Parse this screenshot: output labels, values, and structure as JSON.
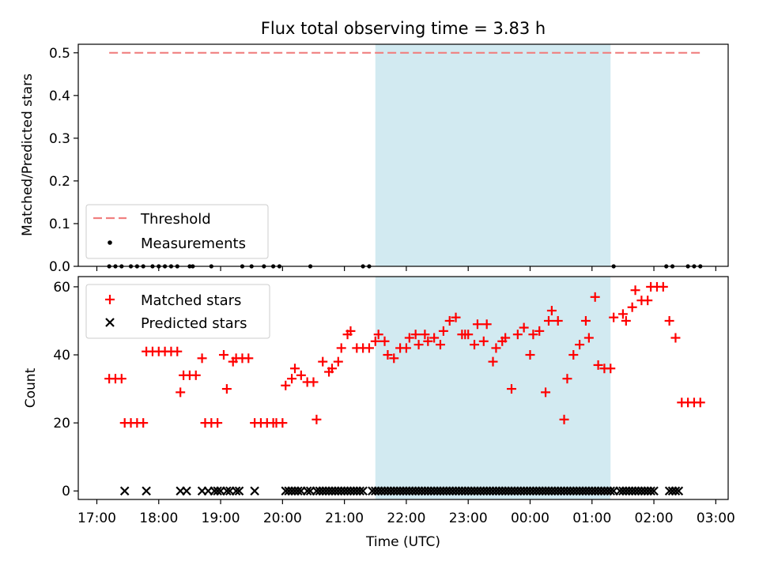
{
  "title": "Flux total observing time = 3.83 h",
  "colors": {
    "threshold": "#f08080",
    "shaded": "#add8e6",
    "matched": "#ff0000",
    "predicted": "#000000",
    "measurement": "#000000"
  },
  "chart_data": [
    {
      "type": "scatter",
      "ylabel": "Matched/Predicted stars",
      "ylim": [
        0,
        0.52
      ],
      "yticks": [
        "0.0",
        "0.1",
        "0.2",
        "0.3",
        "0.4",
        "0.5"
      ],
      "shaded_region": {
        "start_h": 21.5,
        "end_h": 25.3
      },
      "threshold": {
        "value": 0.5,
        "start_h": 17.2,
        "end_h": 26.75
      },
      "legend": {
        "position": "lower-left",
        "threshold_label": "Threshold",
        "measurements_label": "Measurements"
      },
      "measurements_x": [
        17.2,
        17.3,
        17.4,
        17.55,
        17.65,
        17.75,
        17.9,
        18.0,
        18.1,
        18.2,
        18.3,
        18.5,
        18.55,
        18.85,
        19.35,
        19.5,
        19.7,
        19.85,
        19.95,
        20.45,
        21.3,
        21.4,
        25.35,
        26.2,
        26.3,
        26.55,
        26.65,
        26.75
      ],
      "measurements_y": 0
    },
    {
      "type": "scatter",
      "xlabel": "Time (UTC)",
      "ylabel": "Count",
      "ylim": [
        -2.5,
        63
      ],
      "yticks": [
        "0",
        "20",
        "40",
        "60"
      ],
      "xlim": [
        16.7,
        27.2
      ],
      "xticks": [
        "17:00",
        "18:00",
        "19:00",
        "20:00",
        "21:00",
        "22:00",
        "23:00",
        "00:00",
        "01:00",
        "02:00",
        "03:00"
      ],
      "legend": {
        "position": "upper-left",
        "matched_label": "Matched stars",
        "predicted_label": "Predicted stars"
      },
      "series": [
        {
          "name": "Matched stars",
          "x": [
            17.2,
            17.3,
            17.4,
            17.45,
            17.55,
            17.65,
            17.75,
            17.8,
            17.9,
            18.0,
            18.1,
            18.2,
            18.3,
            18.35,
            18.4,
            18.5,
            18.6,
            18.7,
            18.75,
            18.85,
            18.95,
            19.05,
            19.1,
            19.2,
            19.25,
            19.35,
            19.45,
            19.55,
            19.65,
            19.75,
            19.85,
            19.9,
            20.0,
            20.05,
            20.15,
            20.2,
            20.3,
            20.4,
            20.5,
            20.55,
            20.65,
            20.75,
            20.8,
            20.9,
            20.95,
            21.05,
            21.1,
            21.2,
            21.3,
            21.4,
            21.5,
            21.55,
            21.65,
            21.7,
            21.8,
            21.9,
            22.0,
            22.05,
            22.15,
            22.2,
            22.3,
            22.35,
            22.45,
            22.55,
            22.6,
            22.7,
            22.8,
            22.9,
            22.95,
            23.0,
            23.1,
            23.15,
            23.25,
            23.3,
            23.4,
            23.45,
            23.55,
            23.6,
            23.7,
            23.8,
            23.9,
            24.0,
            24.05,
            24.15,
            24.25,
            24.3,
            24.35,
            24.45,
            24.55,
            24.6,
            24.7,
            24.8,
            24.9,
            24.95,
            25.05,
            25.1,
            25.2,
            25.3,
            25.35,
            25.5,
            25.55,
            25.65,
            25.7,
            25.8,
            25.9,
            25.95,
            26.05,
            26.15,
            26.25,
            26.35,
            26.45,
            26.55,
            26.65,
            26.75
          ],
          "y": [
            33,
            33,
            33,
            20,
            20,
            20,
            20,
            41,
            41,
            41,
            41,
            41,
            41,
            29,
            34,
            34,
            34,
            39,
            20,
            20,
            20,
            40,
            30,
            38,
            39,
            39,
            39,
            20,
            20,
            20,
            20,
            20,
            20,
            31,
            33,
            36,
            34,
            32,
            32,
            21,
            38,
            35,
            36,
            38,
            42,
            46,
            47,
            42,
            42,
            42,
            44,
            46,
            44,
            40,
            39,
            42,
            42,
            45,
            46,
            43,
            46,
            44,
            45,
            43,
            47,
            50,
            51,
            46,
            46,
            46,
            43,
            49,
            44,
            49,
            38,
            42,
            44,
            45,
            30,
            46,
            48,
            40,
            46,
            47,
            29,
            50,
            53,
            50,
            21,
            33,
            40,
            43,
            50,
            45,
            57,
            37,
            36,
            36,
            51,
            52,
            50,
            54,
            59,
            56,
            56,
            60,
            60,
            60,
            50,
            45,
            26,
            26,
            26,
            26
          ]
        },
        {
          "name": "Predicted stars",
          "x": [
            17.45,
            17.8,
            18.35,
            18.45,
            18.7,
            18.8,
            18.9,
            18.95,
            19.0,
            19.1,
            19.15,
            19.25,
            19.3,
            19.55,
            20.05,
            20.1,
            20.15,
            20.2,
            20.25,
            20.3,
            20.4,
            20.45,
            20.55,
            20.6,
            20.65,
            20.7,
            20.75,
            20.8,
            20.85,
            20.9,
            20.95,
            21.0,
            21.05,
            21.1,
            21.15,
            21.2,
            21.25,
            21.3,
            21.45,
            21.5,
            21.55,
            21.6,
            21.65,
            21.7,
            21.75,
            21.8,
            21.85,
            21.9,
            21.95,
            22.0,
            22.05,
            22.1,
            22.15,
            22.2,
            22.25,
            22.3,
            22.35,
            22.4,
            22.45,
            22.5,
            22.55,
            22.6,
            22.65,
            22.7,
            22.75,
            22.8,
            22.85,
            22.9,
            22.95,
            23.0,
            23.05,
            23.1,
            23.15,
            23.2,
            23.25,
            23.3,
            23.35,
            23.4,
            23.45,
            23.5,
            23.55,
            23.6,
            23.65,
            23.7,
            23.75,
            23.8,
            23.85,
            23.9,
            23.95,
            24.0,
            24.05,
            24.1,
            24.15,
            24.2,
            24.25,
            24.3,
            24.35,
            24.4,
            24.45,
            24.5,
            24.55,
            24.6,
            24.65,
            24.7,
            24.75,
            24.8,
            24.85,
            24.9,
            24.95,
            25.0,
            25.05,
            25.1,
            25.15,
            25.2,
            25.25,
            25.3,
            25.35,
            25.45,
            25.5,
            25.55,
            25.6,
            25.65,
            25.7,
            25.75,
            25.8,
            25.85,
            25.9,
            25.95,
            26.0,
            26.25,
            26.3,
            26.35,
            26.4
          ],
          "y": 0
        }
      ]
    }
  ]
}
